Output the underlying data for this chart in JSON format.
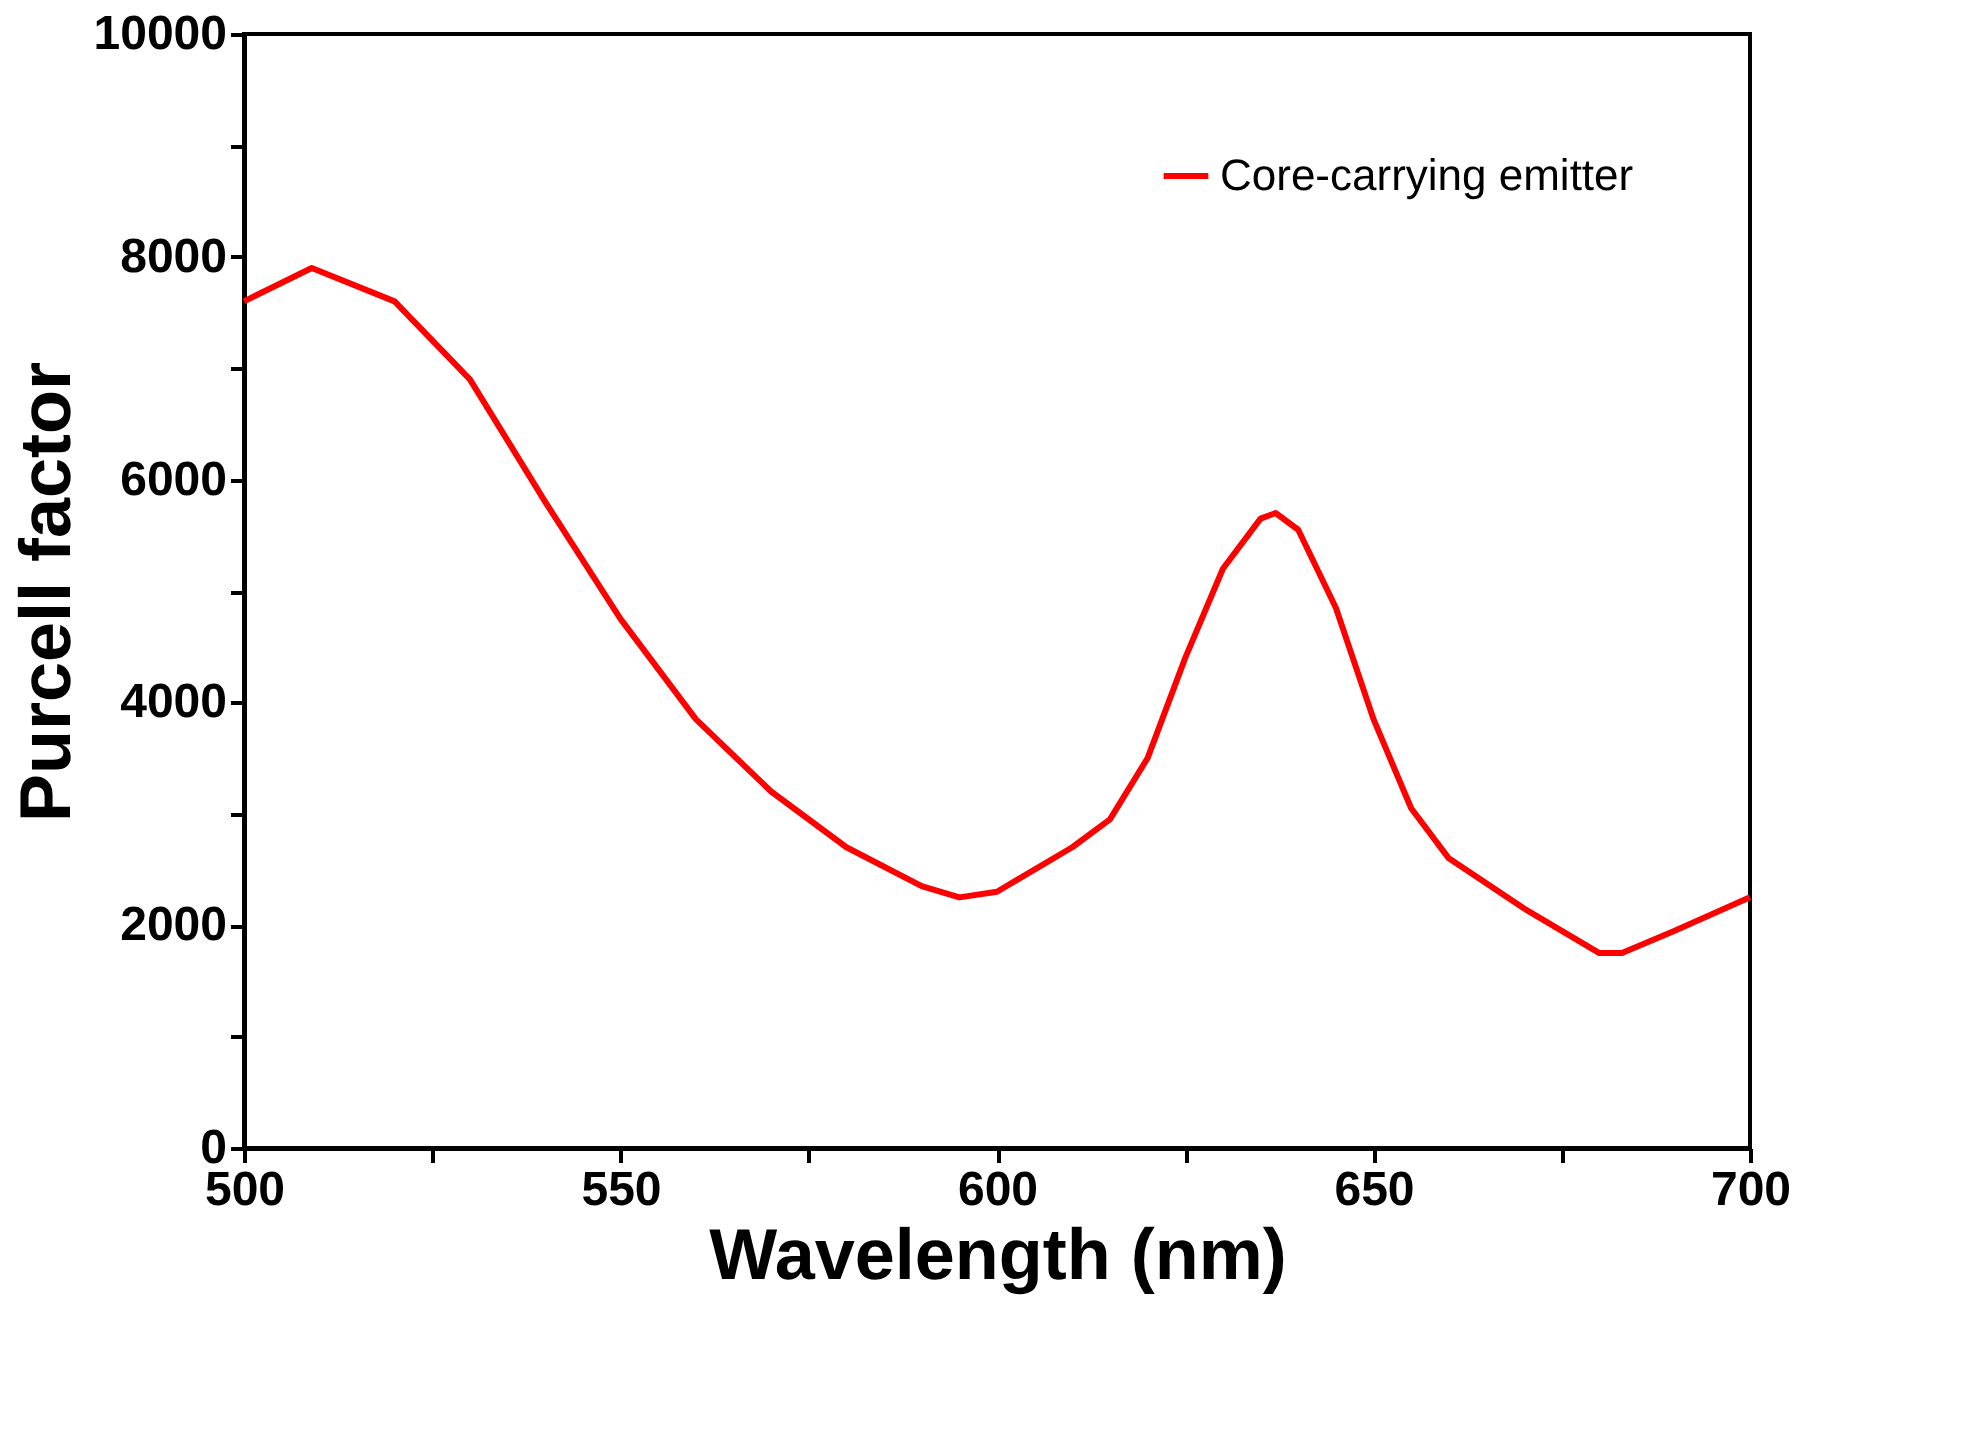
{
  "chart_data": {
    "type": "line",
    "xlabel": "Wavelength (nm)",
    "ylabel": "Purcell factor",
    "x": [
      500,
      509,
      520,
      530,
      540,
      550,
      560,
      570,
      580,
      590,
      595,
      600,
      610,
      615,
      620,
      625,
      630,
      635,
      637,
      640,
      645,
      650,
      655,
      660,
      670,
      680,
      683,
      690,
      700
    ],
    "series": [
      {
        "name": "Core-carrying emitter",
        "color": "#ff0000",
        "values": [
          7600,
          7900,
          7600,
          6900,
          5800,
          4750,
          3850,
          3200,
          2700,
          2350,
          2250,
          2300,
          2700,
          2950,
          3500,
          4400,
          5200,
          5650,
          5700,
          5550,
          4850,
          3850,
          3050,
          2600,
          2150,
          1750,
          1750,
          1950,
          2250
        ]
      }
    ],
    "xlim": [
      500,
      700
    ],
    "ylim": [
      0,
      10000
    ],
    "xticks": [
      500,
      {
        "value": 525,
        "label": null
      },
      550,
      {
        "value": 575,
        "label": null
      },
      600,
      {
        "value": 625,
        "label": null
      },
      650,
      {
        "value": 675,
        "label": null
      },
      700
    ],
    "yticks": [
      0,
      {
        "value": 1000,
        "label": null
      },
      2000,
      {
        "value": 3000,
        "label": null
      },
      4000,
      {
        "value": 5000,
        "label": null
      },
      6000,
      {
        "value": 7000,
        "label": null
      },
      8000,
      {
        "value": 9000,
        "label": null
      },
      10000
    ],
    "grid": false,
    "legend": "top right",
    "marker": "none",
    "line_style": "solid"
  }
}
